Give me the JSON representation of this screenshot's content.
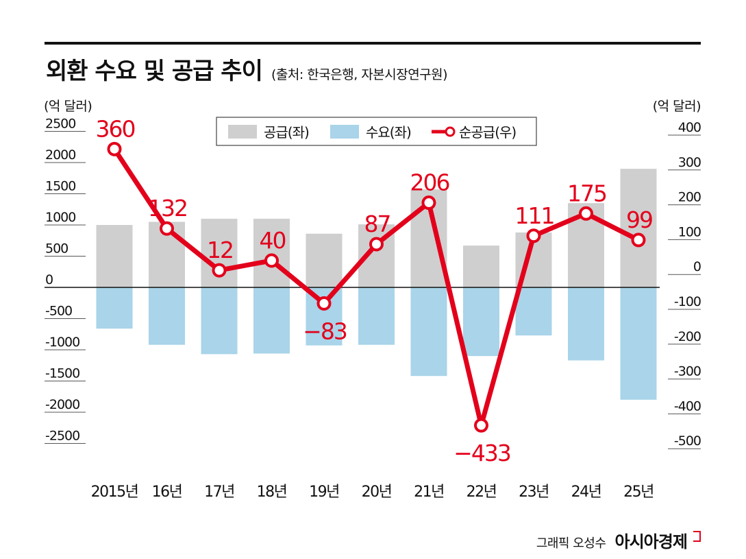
{
  "header": {
    "title": "외환 수요 및 공급 추이",
    "source": "(출처: 한국은행, 자본시장연구원)"
  },
  "units": {
    "left": "(억 달러)",
    "right": "(억 달러)"
  },
  "credit": {
    "author": "그래픽 오성수",
    "brand": "아시아경제"
  },
  "colors": {
    "supply": "#cfcfcf",
    "demand": "#a9d4e9",
    "net": "#e3001b",
    "axis": "#111111"
  },
  "chart_data": {
    "type": "bar",
    "categories": [
      "2015년",
      "16년",
      "17년",
      "18년",
      "19년",
      "20년",
      "21년",
      "22년",
      "23년",
      "24년",
      "25년"
    ],
    "series": [
      {
        "name": "공급(좌)",
        "type": "bar",
        "axis": "left",
        "values": [
          1000,
          1050,
          1100,
          1100,
          860,
          1010,
          1570,
          670,
          880,
          1350,
          1900
        ]
      },
      {
        "name": "수요(좌)",
        "type": "bar",
        "axis": "left",
        "values": [
          -660,
          -920,
          -1070,
          -1060,
          -930,
          -920,
          -1420,
          -1100,
          -770,
          -1170,
          -1800
        ]
      },
      {
        "name": "순공급(우)",
        "type": "line",
        "axis": "right",
        "values": [
          360,
          132,
          12,
          40,
          -83,
          87,
          206,
          -433,
          111,
          175,
          99
        ]
      }
    ],
    "data_labels": [
      "360",
      "132",
      "12",
      "40",
      "−83",
      "87",
      "206",
      "−433",
      "111",
      "175",
      "99"
    ],
    "y_left": {
      "range": [
        -2500,
        2500
      ],
      "ticks": [
        "2500",
        "2000",
        "1500",
        "1000",
        "500",
        "0",
        "-500",
        "-1000",
        "-1500",
        "-2000",
        "-2500"
      ]
    },
    "y_right": {
      "range": [
        -500,
        400
      ],
      "ticks": [
        "400",
        "300",
        "200",
        "100",
        "0",
        "-100",
        "-200",
        "-300",
        "-400",
        "-500"
      ]
    },
    "legend": {
      "position": "top-center",
      "entries": [
        "공급(좌)",
        "수요(좌)",
        "순공급(우)"
      ]
    }
  }
}
